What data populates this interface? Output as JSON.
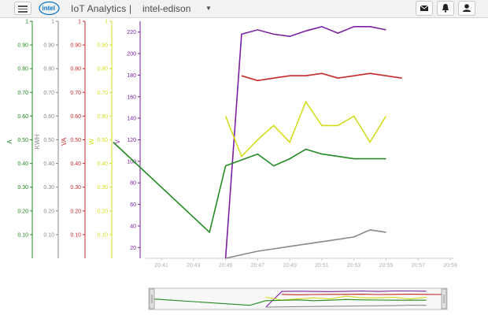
{
  "header": {
    "logo_text": "intel",
    "app_title": "IoT Analytics |",
    "device_name": "intel-edison",
    "buttons": [
      {
        "name": "mail-button",
        "icon": "mail-icon"
      },
      {
        "name": "notifications-button",
        "icon": "bell-icon"
      },
      {
        "name": "user-button",
        "icon": "user-icon"
      }
    ]
  },
  "chart_data": {
    "type": "line",
    "title": "",
    "x_ticks": [
      "20:41",
      "20:43",
      "20:45",
      "20:47",
      "20:49",
      "20:51",
      "20:53",
      "20:55",
      "20:57",
      "20:59"
    ],
    "axes": [
      {
        "id": "A",
        "label": "A",
        "color": "#228b22",
        "min": 0,
        "max": 1,
        "ticks": [
          "0.10",
          "0.20",
          "0.30",
          "0.40",
          "0.50",
          "0.60",
          "0.70",
          "0.80",
          "0.90",
          "1"
        ]
      },
      {
        "id": "KWH",
        "label": "KWH",
        "color": "#888888",
        "min": 0,
        "max": 1,
        "ticks": [
          "0.10",
          "0.20",
          "0.30",
          "0.40",
          "0.50",
          "0.60",
          "0.70",
          "0.80",
          "0.90",
          "1"
        ]
      },
      {
        "id": "VA",
        "label": "VA",
        "color": "#c62828",
        "min": 0,
        "max": 1,
        "ticks": [
          "0.10",
          "0.20",
          "0.30",
          "0.40",
          "0.50",
          "0.60",
          "0.70",
          "0.80",
          "0.90",
          "1"
        ]
      },
      {
        "id": "W",
        "label": "W",
        "color": "#d4dc1e",
        "min": 0,
        "max": 1,
        "ticks": [
          "0.10",
          "0.20",
          "0.30",
          "0.40",
          "0.50",
          "0.60",
          "0.70",
          "0.80",
          "0.90",
          "1"
        ]
      },
      {
        "id": "V",
        "label": "V",
        "color": "#7b1fa2",
        "min": 10,
        "max": 230,
        "ticks": [
          "20",
          "40",
          "60",
          "80",
          "100",
          "120",
          "140",
          "160",
          "180",
          "200",
          "220"
        ]
      }
    ],
    "series": [
      {
        "axis": "V",
        "color": "#7b1fa2",
        "points": [
          [
            "20:45",
            10
          ],
          [
            "20:46",
            218
          ],
          [
            "20:47",
            222
          ],
          [
            "20:48",
            218
          ],
          [
            "20:49",
            216
          ],
          [
            "20:50",
            221
          ],
          [
            "20:51",
            225
          ],
          [
            "20:52",
            219
          ],
          [
            "20:53",
            225
          ],
          [
            "20:54",
            225
          ],
          [
            "20:55",
            222
          ]
        ]
      },
      {
        "axis": "VA",
        "color": "#c62828",
        "points": [
          [
            "20:46",
            0.77
          ],
          [
            "20:47",
            0.75
          ],
          [
            "20:48",
            0.76
          ],
          [
            "20:49",
            0.77
          ],
          [
            "20:50",
            0.77
          ],
          [
            "20:51",
            0.78
          ],
          [
            "20:52",
            0.76
          ],
          [
            "20:53",
            0.77
          ],
          [
            "20:54",
            0.78
          ],
          [
            "20:55",
            0.77
          ],
          [
            "20:56",
            0.76
          ]
        ]
      },
      {
        "axis": "W",
        "color": "#d4dc1e",
        "points": [
          [
            "20:45",
            0.6
          ],
          [
            "20:46",
            0.43
          ],
          [
            "20:47",
            0.5
          ],
          [
            "20:48",
            0.56
          ],
          [
            "20:49",
            0.49
          ],
          [
            "20:50",
            0.66
          ],
          [
            "20:51",
            0.56
          ],
          [
            "20:52",
            0.56
          ],
          [
            "20:53",
            0.6
          ],
          [
            "20:54",
            0.49
          ],
          [
            "20:55",
            0.6
          ]
        ]
      },
      {
        "axis": "A",
        "color": "#228b22",
        "points": [
          [
            "20:38",
            0.49
          ],
          [
            "20:44",
            0.11
          ],
          [
            "20:45",
            0.39
          ],
          [
            "20:47",
            0.44
          ],
          [
            "20:48",
            0.39
          ],
          [
            "20:49",
            0.42
          ],
          [
            "20:50",
            0.46
          ],
          [
            "20:51",
            0.44
          ],
          [
            "20:52",
            0.43
          ],
          [
            "20:53",
            0.42
          ],
          [
            "20:54",
            0.42
          ],
          [
            "20:55",
            0.42
          ]
        ]
      },
      {
        "axis": "KWH",
        "color": "#888888",
        "points": [
          [
            "20:45",
            0.0
          ],
          [
            "20:47",
            0.03
          ],
          [
            "20:48",
            0.04
          ],
          [
            "20:49",
            0.05
          ],
          [
            "20:50",
            0.06
          ],
          [
            "20:51",
            0.07
          ],
          [
            "20:52",
            0.08
          ],
          [
            "20:53",
            0.09
          ],
          [
            "20:54",
            0.12
          ],
          [
            "20:55",
            0.11
          ]
        ]
      }
    ]
  }
}
